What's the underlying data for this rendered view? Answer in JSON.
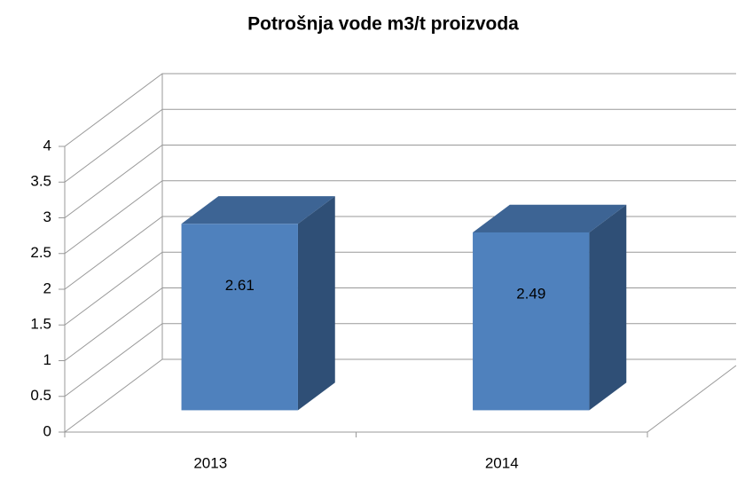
{
  "chart_data": {
    "type": "bar3d",
    "title": "Potrošnja vode m3/t proizvoda",
    "categories": [
      "2013",
      "2014"
    ],
    "values": [
      2.61,
      2.49
    ],
    "color": "#4f81bd",
    "ylim": [
      0,
      4
    ],
    "yticks": [
      0,
      0.5,
      1,
      1.5,
      2,
      2.5,
      3,
      3.5,
      4
    ],
    "grid": true
  }
}
